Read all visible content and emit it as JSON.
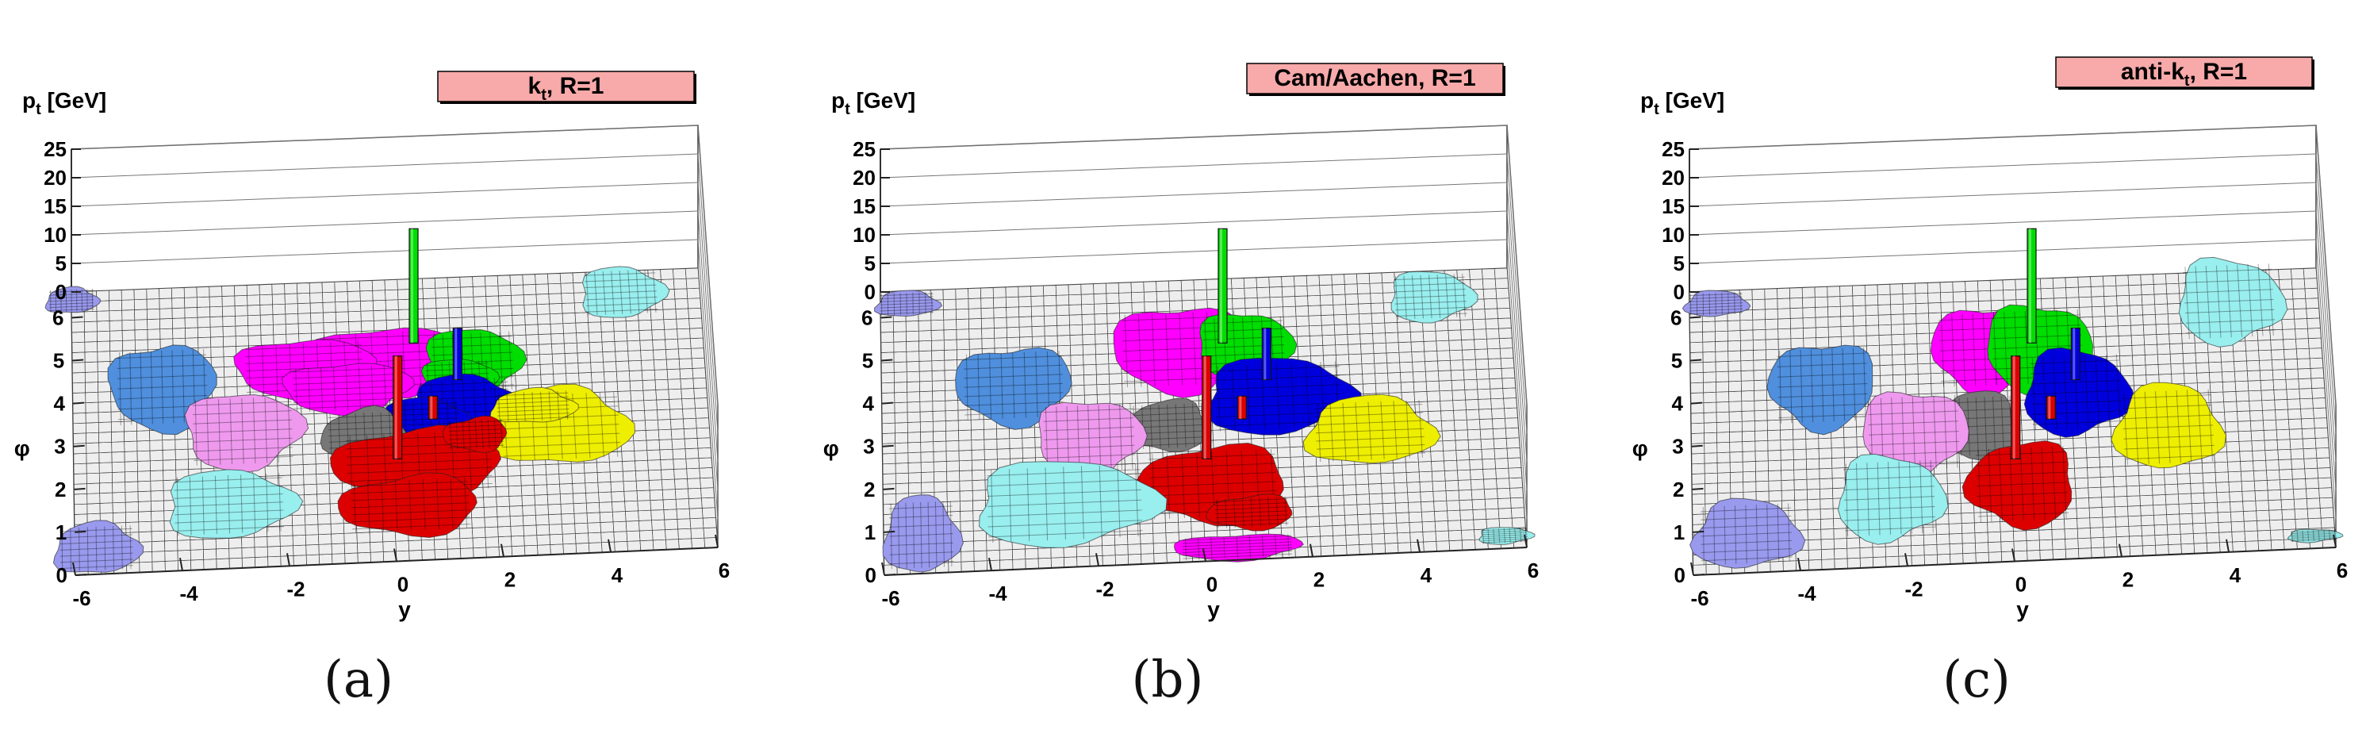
{
  "figure": {
    "captions": [
      "(a)",
      "(b)",
      "(c)"
    ]
  },
  "chart_data": [
    {
      "type": "lego3d",
      "title": "k_t, R=1",
      "title_main": "k",
      "title_sub": "t",
      "title_rest": ", R=1",
      "xlabel": "y",
      "ylabel": "φ",
      "zlabel_main": "p",
      "zlabel_sub": "t",
      "zlabel_rest": " [GeV]",
      "xlim": [
        -6,
        6
      ],
      "ylim": [
        0,
        6
      ],
      "zlim": [
        0,
        25
      ],
      "xticks": [
        "-6",
        "-4",
        "-2",
        "0",
        "2",
        "4",
        "6"
      ],
      "yticks": [
        "0",
        "1",
        "2",
        "3",
        "4",
        "5",
        "6"
      ],
      "zticks": [
        "0",
        "5",
        "10",
        "15",
        "20",
        "25"
      ],
      "colors": {
        "grid": "#444444",
        "cell": "#eeeeee",
        "title_box": "#f8a9a9"
      },
      "jets": [
        {
          "color": "#ff00ff",
          "patches": [
            [
              0.0,
              4.7,
              1.5,
              0.8
            ],
            [
              -1.6,
              4.6,
              1.3,
              0.7
            ],
            [
              -0.8,
              4.1,
              1.2,
              0.6
            ]
          ]
        },
        {
          "color": "#00dd00",
          "patches": [
            [
              1.6,
              4.6,
              0.9,
              0.8
            ],
            [
              1.3,
              4.2,
              0.7,
              0.5
            ]
          ]
        },
        {
          "color": "#0000dd",
          "patches": [
            [
              1.4,
              3.6,
              1.0,
              0.7
            ],
            [
              0.6,
              3.3,
              0.8,
              0.5
            ]
          ]
        },
        {
          "color": "#eeee00",
          "patches": [
            [
              3.2,
              3.0,
              1.3,
              0.9
            ],
            [
              2.7,
              3.5,
              0.8,
              0.4
            ]
          ]
        },
        {
          "color": "#777777",
          "patches": [
            [
              -0.5,
              3.0,
              0.8,
              0.6
            ]
          ]
        },
        {
          "color": "#dd0000",
          "patches": [
            [
              0.5,
              2.3,
              1.6,
              0.8
            ],
            [
              0.3,
              1.3,
              1.3,
              0.7
            ],
            [
              1.6,
              2.9,
              0.6,
              0.4
            ]
          ]
        },
        {
          "color": "#4f8fdd",
          "patches": [
            [
              -4.3,
              4.3,
              1.0,
              1.0
            ]
          ]
        },
        {
          "color": "#ee99ee",
          "patches": [
            [
              -2.8,
              3.2,
              1.1,
              0.9
            ]
          ]
        },
        {
          "color": "#99eeee",
          "patches": [
            [
              -3.1,
              1.5,
              1.2,
              0.8
            ],
            [
              4.5,
              6.1,
              0.8,
              0.6
            ]
          ]
        },
        {
          "color": "#9999ee",
          "patches": [
            [
              -5.6,
              0.6,
              0.8,
              0.6
            ],
            [
              -6.0,
              6.4,
              0.5,
              0.3
            ]
          ]
        }
      ],
      "towers": [
        {
          "y": 0.5,
          "phi": 5.1,
          "pt": 20,
          "color": "#00dd00"
        },
        {
          "y": 1.3,
          "phi": 4.2,
          "pt": 9,
          "color": "#0000dd"
        },
        {
          "y": 0.1,
          "phi": 2.4,
          "pt": 18,
          "color": "#dd0000"
        },
        {
          "y": 0.8,
          "phi": 3.3,
          "pt": 4,
          "color": "#dd0000"
        }
      ]
    },
    {
      "type": "lego3d",
      "title": "Cam/Aachen, R=1",
      "title_main": "Cam/Aachen, R=1",
      "title_sub": "",
      "title_rest": "",
      "xlabel": "y",
      "ylabel": "φ",
      "zlabel_main": "p",
      "zlabel_sub": "t",
      "zlabel_rest": " [GeV]",
      "xlim": [
        -6,
        6
      ],
      "ylim": [
        0,
        6
      ],
      "zlim": [
        0,
        25
      ],
      "xticks": [
        "-6",
        "-4",
        "-2",
        "0",
        "2",
        "4",
        "6"
      ],
      "yticks": [
        "0",
        "1",
        "2",
        "3",
        "4",
        "5",
        "6"
      ],
      "zticks": [
        "0",
        "5",
        "10",
        "15",
        "20",
        "25"
      ],
      "colors": {
        "grid": "#444444",
        "cell": "#eeeeee",
        "title_box": "#f8a9a9"
      },
      "jets": [
        {
          "color": "#ff00ff",
          "patches": [
            [
              -0.3,
              5.0,
              1.3,
              1.0
            ],
            [
              0.6,
              0.3,
              1.2,
              0.3
            ]
          ]
        },
        {
          "color": "#00dd00",
          "patches": [
            [
              0.9,
              5.0,
              0.9,
              0.8
            ]
          ]
        },
        {
          "color": "#0000dd",
          "patches": [
            [
              1.5,
              3.8,
              1.4,
              0.9
            ]
          ]
        },
        {
          "color": "#eeee00",
          "patches": [
            [
              3.2,
              2.9,
              1.2,
              0.8
            ]
          ]
        },
        {
          "color": "#777777",
          "patches": [
            [
              -0.6,
              3.2,
              0.8,
              0.6
            ]
          ]
        },
        {
          "color": "#dd0000",
          "patches": [
            [
              0.2,
              1.8,
              1.4,
              0.9
            ],
            [
              0.9,
              1.1,
              0.8,
              0.4
            ]
          ]
        },
        {
          "color": "#4f8fdd",
          "patches": [
            [
              -3.5,
              4.3,
              1.1,
              0.9
            ]
          ]
        },
        {
          "color": "#ee99ee",
          "patches": [
            [
              -2.1,
              3.0,
              1.0,
              0.9
            ]
          ]
        },
        {
          "color": "#99eeee",
          "patches": [
            [
              -2.6,
              1.5,
              1.7,
              1.0
            ],
            [
              4.5,
              6.0,
              0.8,
              0.6
            ],
            [
              5.6,
              0.3,
              0.5,
              0.2
            ]
          ]
        },
        {
          "color": "#9999ee",
          "patches": [
            [
              -5.3,
              0.9,
              0.7,
              0.9
            ],
            [
              -5.5,
              6.3,
              0.6,
              0.3
            ]
          ]
        }
      ],
      "towers": [
        {
          "y": 0.5,
          "phi": 5.1,
          "pt": 20,
          "color": "#00dd00"
        },
        {
          "y": 1.3,
          "phi": 4.2,
          "pt": 9,
          "color": "#0000dd"
        },
        {
          "y": 0.1,
          "phi": 2.4,
          "pt": 18,
          "color": "#dd0000"
        },
        {
          "y": 0.8,
          "phi": 3.3,
          "pt": 4,
          "color": "#dd0000"
        }
      ]
    },
    {
      "type": "lego3d",
      "title": "anti-k_t, R=1",
      "title_main": "anti-k",
      "title_sub": "t",
      "title_rest": ", R=1",
      "xlabel": "y",
      "ylabel": "φ",
      "zlabel_main": "p",
      "zlabel_sub": "t",
      "zlabel_rest": " [GeV]",
      "xlim": [
        -6,
        6
      ],
      "ylim": [
        0,
        6
      ],
      "zlim": [
        0,
        25
      ],
      "xticks": [
        "-6",
        "-4",
        "-2",
        "0",
        "2",
        "4",
        "6"
      ],
      "yticks": [
        "0",
        "1",
        "2",
        "3",
        "4",
        "5",
        "6"
      ],
      "zticks": [
        "0",
        "5",
        "10",
        "15",
        "20",
        "25"
      ],
      "colors": {
        "grid": "#444444",
        "cell": "#eeeeee",
        "title_box": "#f8a9a9"
      },
      "jets": [
        {
          "color": "#ff00ff",
          "patches": [
            [
              -0.4,
              5.0,
              1.0,
              1.0
            ]
          ]
        },
        {
          "color": "#00dd00",
          "patches": [
            [
              0.6,
              5.0,
              1.0,
              1.0
            ]
          ]
        },
        {
          "color": "#0000dd",
          "patches": [
            [
              1.3,
              3.9,
              1.0,
              1.0
            ]
          ]
        },
        {
          "color": "#eeee00",
          "patches": [
            [
              3.0,
              3.0,
              1.0,
              1.0
            ]
          ]
        },
        {
          "color": "#777777",
          "patches": [
            [
              -0.6,
              3.2,
              0.8,
              0.8
            ]
          ]
        },
        {
          "color": "#dd0000",
          "patches": [
            [
              0.2,
              1.8,
              1.0,
              1.0
            ]
          ]
        },
        {
          "color": "#4f8fdd",
          "patches": [
            [
              -3.5,
              4.3,
              1.0,
              1.0
            ]
          ]
        },
        {
          "color": "#ee99ee",
          "patches": [
            [
              -1.8,
              3.1,
              1.0,
              1.0
            ]
          ]
        },
        {
          "color": "#99eeee",
          "patches": [
            [
              -2.3,
              1.6,
              1.0,
              1.0
            ],
            [
              4.3,
              5.9,
              1.0,
              1.0
            ],
            [
              5.6,
              0.3,
              0.5,
              0.15
            ]
          ]
        },
        {
          "color": "#9999ee",
          "patches": [
            [
              -5.0,
              0.9,
              1.0,
              0.8
            ],
            [
              -5.5,
              6.3,
              0.6,
              0.3
            ]
          ]
        }
      ],
      "towers": [
        {
          "y": 0.5,
          "phi": 5.1,
          "pt": 20,
          "color": "#00dd00"
        },
        {
          "y": 1.3,
          "phi": 4.2,
          "pt": 9,
          "color": "#0000dd"
        },
        {
          "y": 0.1,
          "phi": 2.4,
          "pt": 18,
          "color": "#dd0000"
        },
        {
          "y": 0.8,
          "phi": 3.3,
          "pt": 4,
          "color": "#dd0000"
        }
      ]
    }
  ]
}
